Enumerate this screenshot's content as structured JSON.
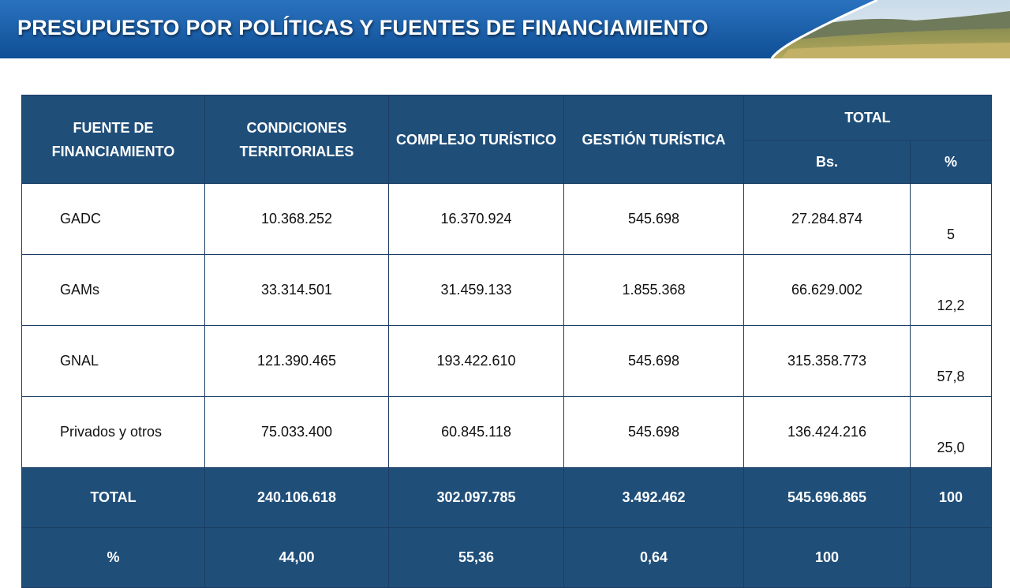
{
  "title": "PRESUPUESTO POR POLÍTICAS Y FUENTES DE FINANCIAMIENTO",
  "colors": {
    "banner": "#1a5fa8",
    "header": "#1f4e79"
  },
  "table": {
    "headers": {
      "fuente": "FUENTE DE FINANCIAMIENTO",
      "condiciones": "CONDICIONES TERRITORIALES",
      "complejo": "COMPLEJO TURÍSTICO",
      "gestion": "GESTIÓN TURÍSTICA",
      "total": "TOTAL",
      "bs": "Bs.",
      "pct": "%"
    },
    "rows": [
      {
        "fuente": "GADC",
        "condiciones": "10.368.252",
        "complejo": "16.370.924",
        "gestion": "545.698",
        "total": "27.284.874",
        "pct": "5"
      },
      {
        "fuente": "GAMs",
        "condiciones": "33.314.501",
        "complejo": "31.459.133",
        "gestion": "1.855.368",
        "total": "66.629.002",
        "pct": "12,2"
      },
      {
        "fuente": "GNAL",
        "condiciones": "121.390.465",
        "complejo": "193.422.610",
        "gestion": "545.698",
        "total": "315.358.773",
        "pct": "57,8"
      },
      {
        "fuente": "Privados y otros",
        "condiciones": "75.033.400",
        "complejo": "60.845.118",
        "gestion": "545.698",
        "total": "136.424.216",
        "pct": "25,0"
      }
    ],
    "total_row": {
      "label": "TOTAL",
      "condiciones": "240.106.618",
      "complejo": "302.097.785",
      "gestion": "3.492.462",
      "total": "545.696.865",
      "pct": "100"
    },
    "pct_row": {
      "label": "%",
      "condiciones": "44,00",
      "complejo": "55,36",
      "gestion": "0,64",
      "total": "100"
    }
  }
}
